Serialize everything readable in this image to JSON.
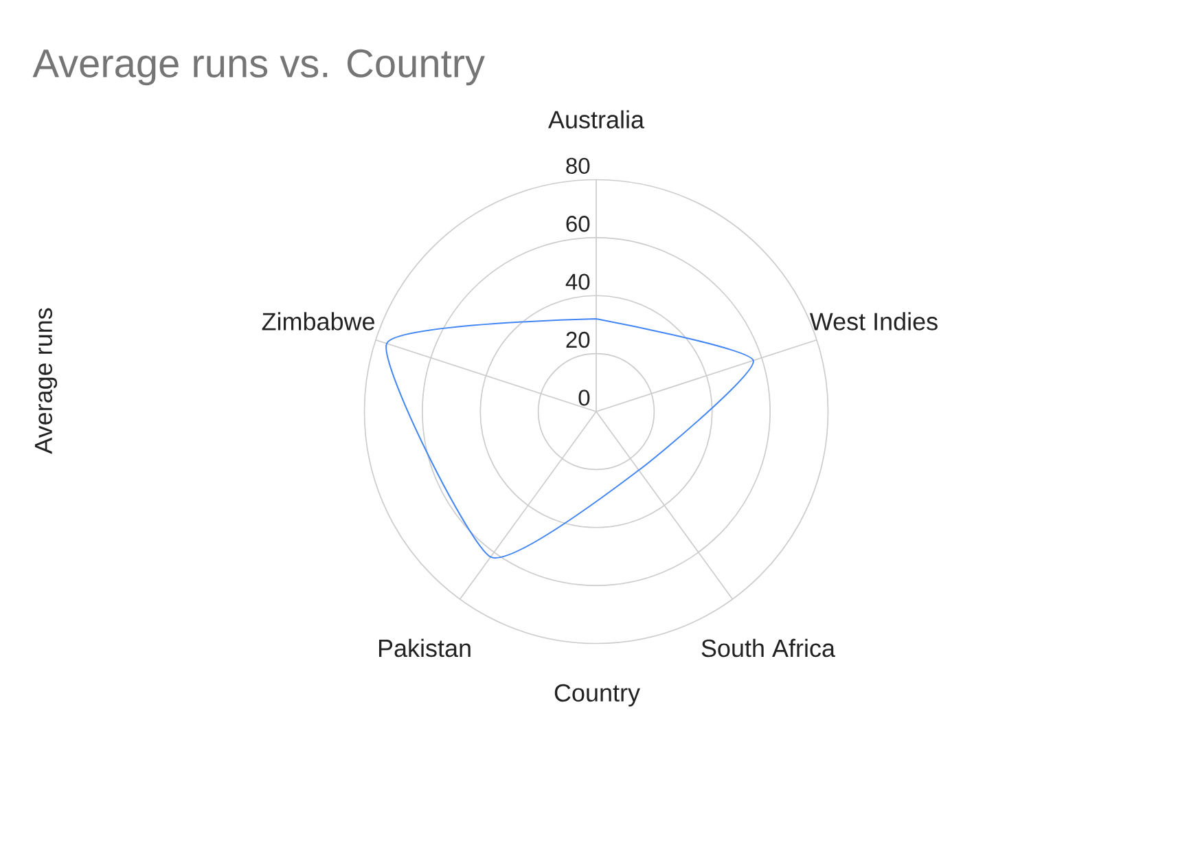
{
  "chart_data": {
    "type": "radar",
    "title": "Average runs vs. Country",
    "xlabel": "Country",
    "ylabel": "Average runs",
    "categories": [
      "Australia",
      "West Indies",
      "South Africa",
      "Pakistan",
      "Zimbabwe"
    ],
    "series": [
      {
        "color": "#4285f4",
        "values": [
          32,
          57,
          25,
          62,
          76
        ]
      }
    ],
    "ylim": [
      0,
      80
    ],
    "yticks": [
      0,
      20,
      40,
      60,
      80
    ],
    "grid": true
  }
}
